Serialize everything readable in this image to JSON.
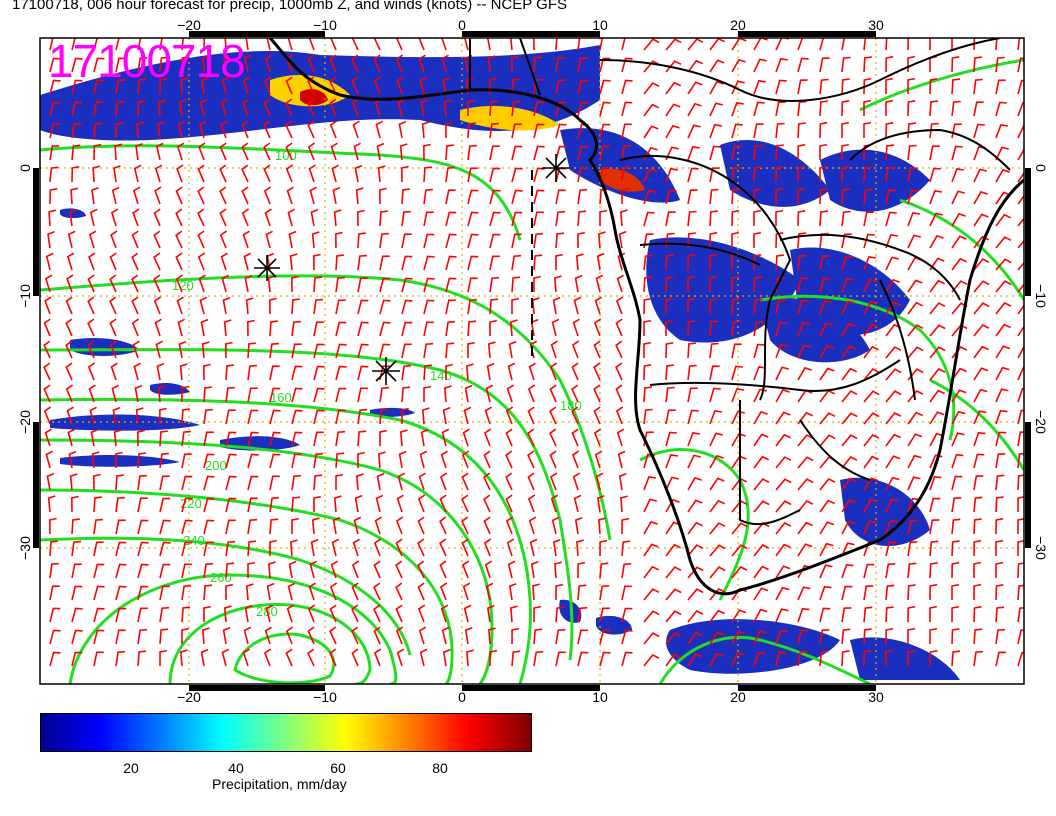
{
  "title": "17100718, 006 hour forecast for precip, 1000mb Z, and winds (knots) -- NCEP GFS",
  "stamp": "17100718",
  "map": {
    "lon_ticks": [
      "−20",
      "−10",
      "0",
      "10",
      "20",
      "30"
    ],
    "lat_ticks": [
      "0",
      "−10",
      "−20",
      "−30"
    ],
    "contour_labels": [
      "100",
      "120",
      "140",
      "160",
      "180",
      "200",
      "220",
      "240",
      "260",
      "280"
    ],
    "colors": {
      "contour": "#22dd22",
      "barb": "#ff0000",
      "grid": "#e0b000",
      "coast": "#000000"
    }
  },
  "colorbar": {
    "ticks": [
      "20",
      "40",
      "60",
      "80"
    ],
    "label": "Precipitation, mm/day"
  }
}
